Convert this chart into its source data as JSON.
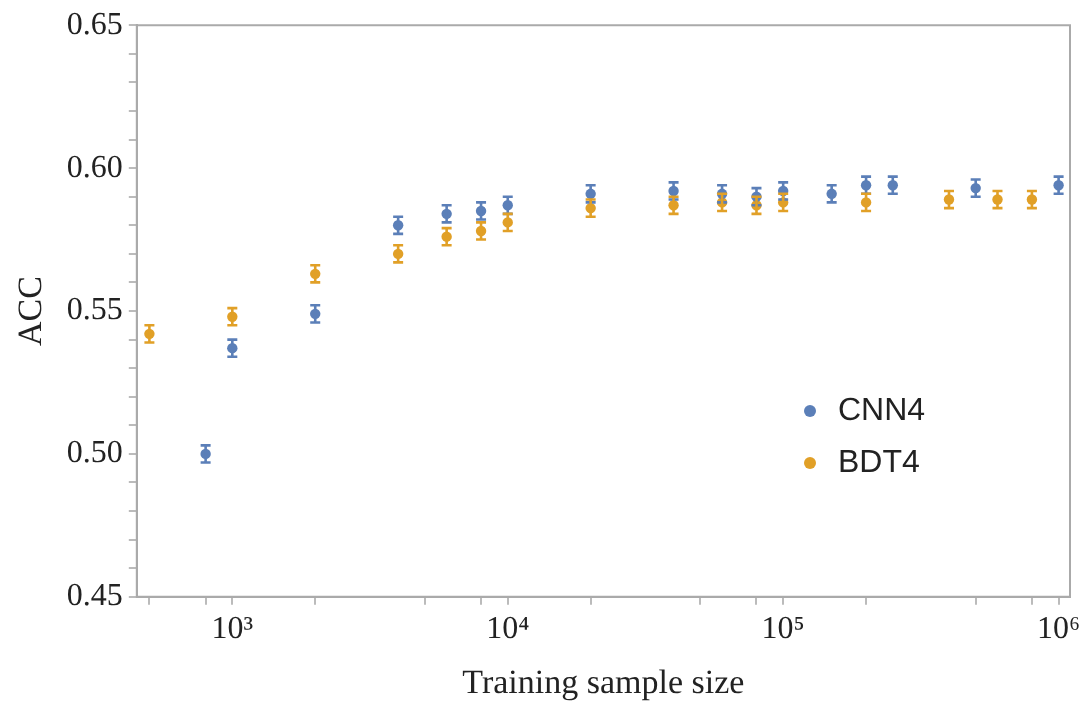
{
  "chart_data": {
    "type": "scatter",
    "xlabel": "Training sample size",
    "ylabel": "ACC",
    "log": "x",
    "marker": "circle",
    "grid": false,
    "legend": "right",
    "xlim": [
      450,
      1100000
    ],
    "ylim": [
      0.45,
      0.65
    ],
    "xticks": [
      {
        "value": 1000,
        "label": "10³"
      },
      {
        "value": 10000,
        "label": "10⁴"
      },
      {
        "value": 100000,
        "label": "10⁵"
      },
      {
        "value": 1000000,
        "label": "10⁶"
      },
      {
        "value": 500,
        "label": null
      },
      {
        "value": 800,
        "label": null
      },
      {
        "value": 2000,
        "label": null
      },
      {
        "value": 5000,
        "label": null
      },
      {
        "value": 8000,
        "label": null
      },
      {
        "value": 20000,
        "label": null
      },
      {
        "value": 50000,
        "label": null
      },
      {
        "value": 80000,
        "label": null
      },
      {
        "value": 200000,
        "label": null
      },
      {
        "value": 500000,
        "label": null
      },
      {
        "value": 800000,
        "label": null
      }
    ],
    "yticks": [
      0.45,
      {
        "value": 0.5,
        "label": "0.50"
      },
      0.55,
      {
        "value": 0.6,
        "label": "0.60"
      },
      0.65,
      {
        "value": 0.46,
        "label": null
      },
      {
        "value": 0.47,
        "label": null
      },
      {
        "value": 0.48,
        "label": null
      },
      {
        "value": 0.49,
        "label": null
      },
      {
        "value": 0.51,
        "label": null
      },
      {
        "value": 0.52,
        "label": null
      },
      {
        "value": 0.53,
        "label": null
      },
      {
        "value": 0.54,
        "label": null
      },
      {
        "value": 0.56,
        "label": null
      },
      {
        "value": 0.57,
        "label": null
      },
      {
        "value": 0.58,
        "label": null
      },
      {
        "value": 0.59,
        "label": null
      },
      {
        "value": 0.61,
        "label": null
      },
      {
        "value": 0.62,
        "label": null
      },
      {
        "value": 0.63,
        "label": null
      },
      {
        "value": 0.64,
        "label": null
      }
    ],
    "series": [
      {
        "name": "CNN4",
        "color": "#5b7fb8",
        "x": [
          800,
          1000,
          2000,
          4000,
          6000,
          8000,
          10000,
          20000,
          40000,
          60000,
          80000,
          100000,
          150000,
          200000,
          250000,
          500000,
          1000000
        ],
        "values": [
          0.5,
          0.537,
          0.549,
          0.58,
          0.584,
          0.585,
          0.587,
          0.591,
          0.592,
          0.591,
          0.59,
          0.592,
          0.591,
          0.594,
          0.594,
          0.593,
          0.594
        ],
        "errors": [
          0.003,
          0.003,
          0.003,
          0.003,
          0.003,
          0.003,
          0.003,
          0.003,
          0.003,
          0.003,
          0.003,
          0.003,
          0.003,
          0.003,
          0.003,
          0.003,
          0.003
        ]
      },
      {
        "name": "BDT4",
        "color": "#e1a027",
        "x": [
          500,
          1000,
          2000,
          4000,
          6000,
          8000,
          10000,
          20000,
          40000,
          60000,
          80000,
          100000,
          200000,
          400000,
          600000,
          800000
        ],
        "values": [
          0.542,
          0.548,
          0.563,
          0.57,
          0.576,
          0.578,
          0.581,
          0.586,
          0.587,
          0.588,
          0.587,
          0.588,
          0.588,
          0.589,
          0.589,
          0.589
        ],
        "errors": [
          0.003,
          0.003,
          0.003,
          0.003,
          0.003,
          0.003,
          0.003,
          0.003,
          0.003,
          0.003,
          0.003,
          0.003,
          0.003,
          0.003,
          0.003,
          0.003
        ]
      }
    ]
  }
}
